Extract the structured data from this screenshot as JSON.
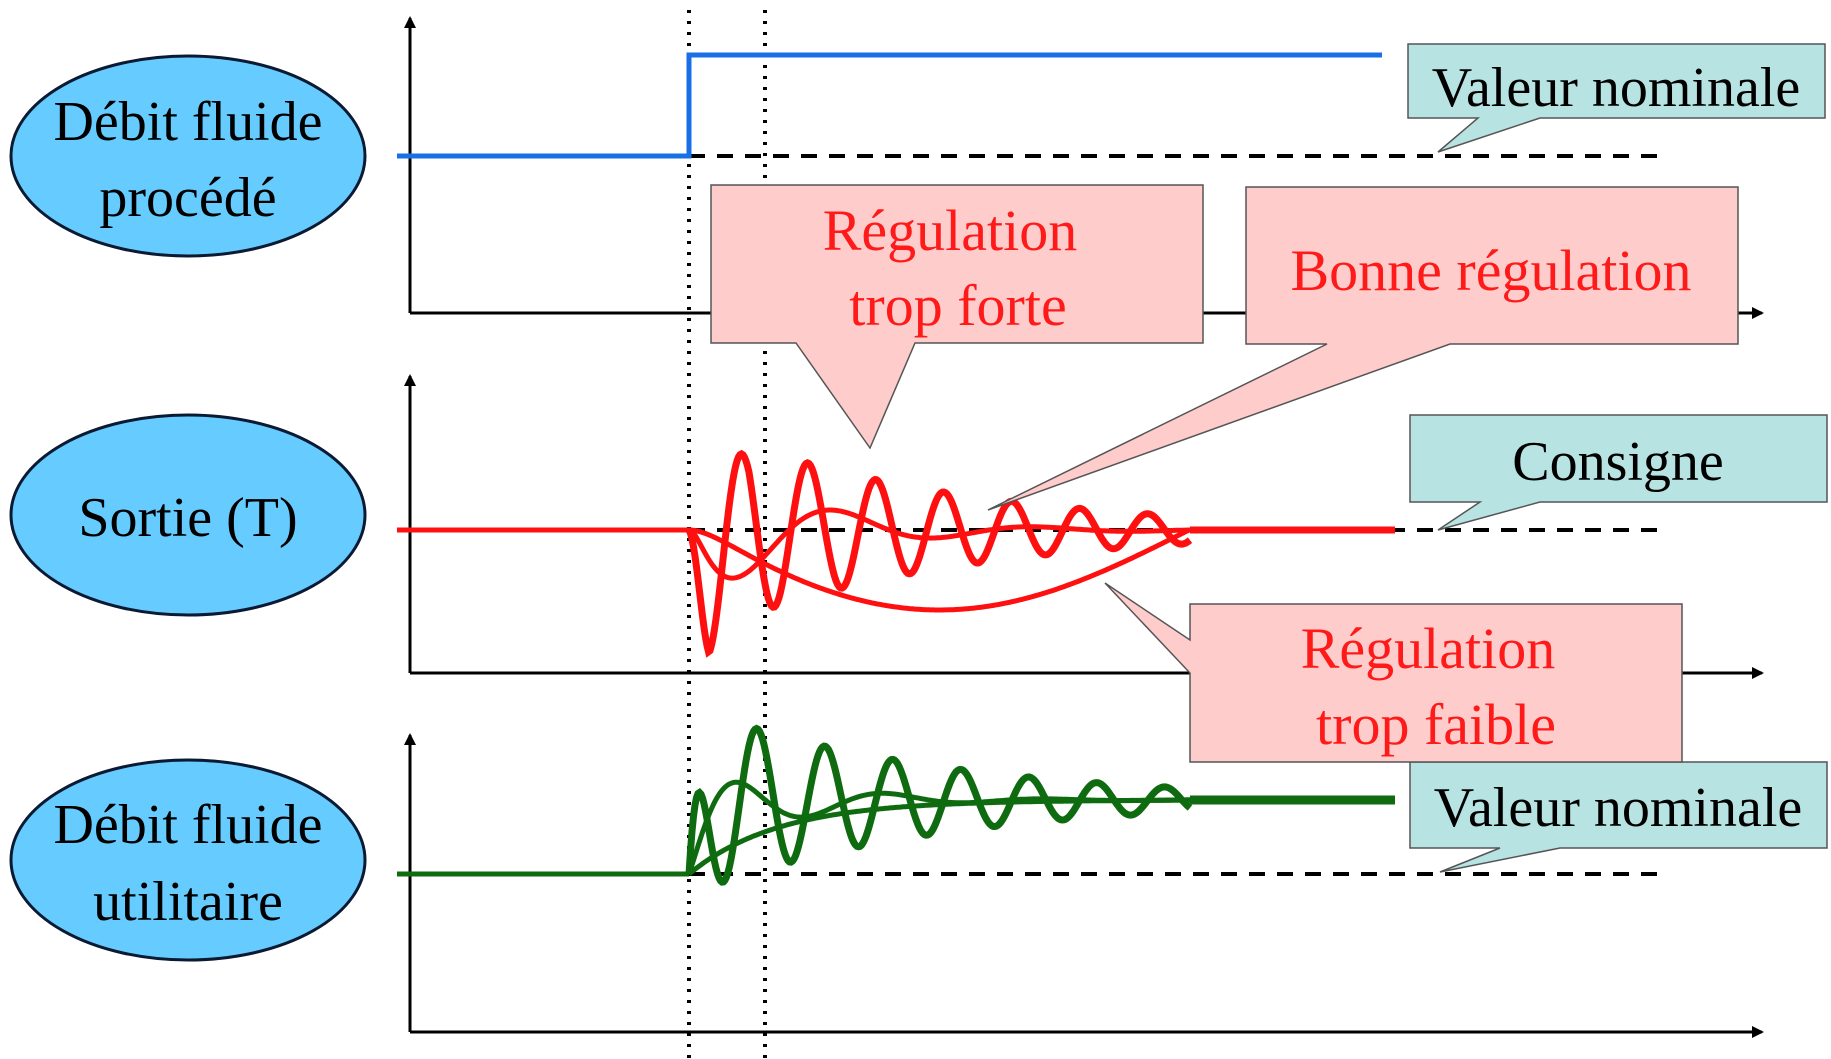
{
  "colors": {
    "ellipse_fill": "#66ccff",
    "ellipse_stroke": "#0a1a33",
    "blue_line": "#1a6fe6",
    "red_line": "#ff1010",
    "green_line": "#0f6b0f",
    "red_callout_fill": "#ffcccc",
    "teal_callout_fill": "#b8e3e3",
    "red_text": "#ff1a1a"
  },
  "ellipses": {
    "top": {
      "line1": "Débit fluide",
      "line2": "procédé"
    },
    "middle": {
      "line1": "Sortie (T)"
    },
    "bottom": {
      "line1": "Débit fluide",
      "line2": "utilitaire"
    }
  },
  "callouts": {
    "top_nominal": "Valeur nominale",
    "consigne": "Consigne",
    "bottom_nominal": "Valeur nominale",
    "too_strong": {
      "line1": "Régulation",
      "line2": "trop forte"
    },
    "good": "Bonne régulation",
    "too_weak": {
      "line1": "Régulation",
      "line2": "trop faible"
    }
  }
}
